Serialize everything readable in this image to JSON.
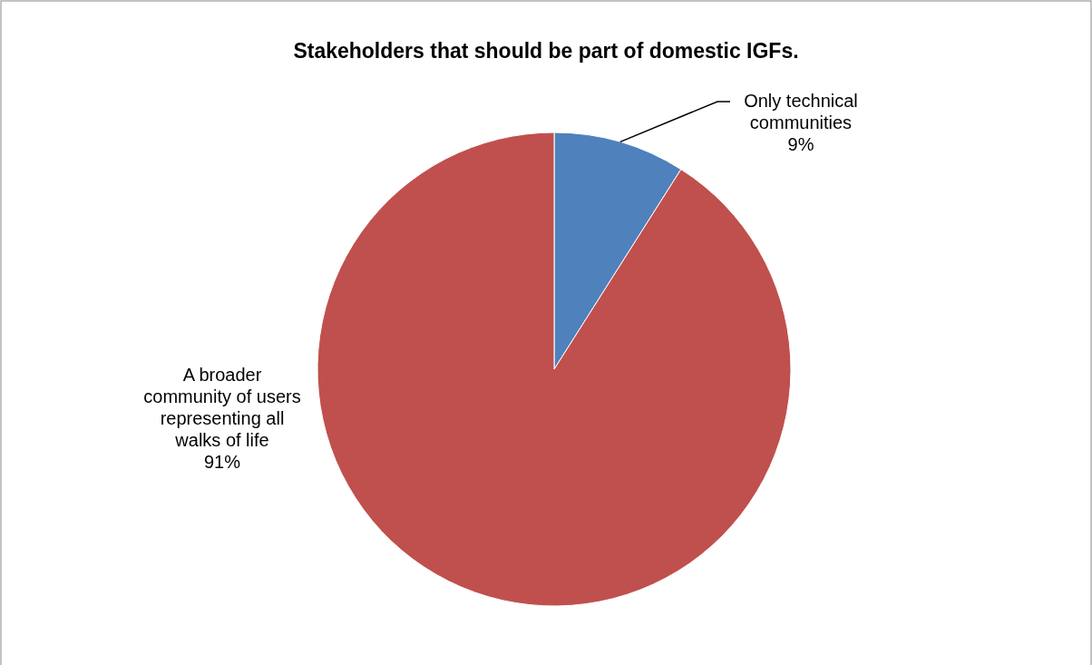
{
  "chart_data": {
    "type": "pie",
    "title": "Stakeholders that should be part of domestic IGFs.",
    "categories": [
      "Only technical communities",
      "A broader community of users representing all walks of life"
    ],
    "values": [
      9,
      91
    ],
    "colors": [
      "#4f81bd",
      "#c0504d"
    ],
    "value_labels": [
      "9%",
      "91%"
    ]
  }
}
